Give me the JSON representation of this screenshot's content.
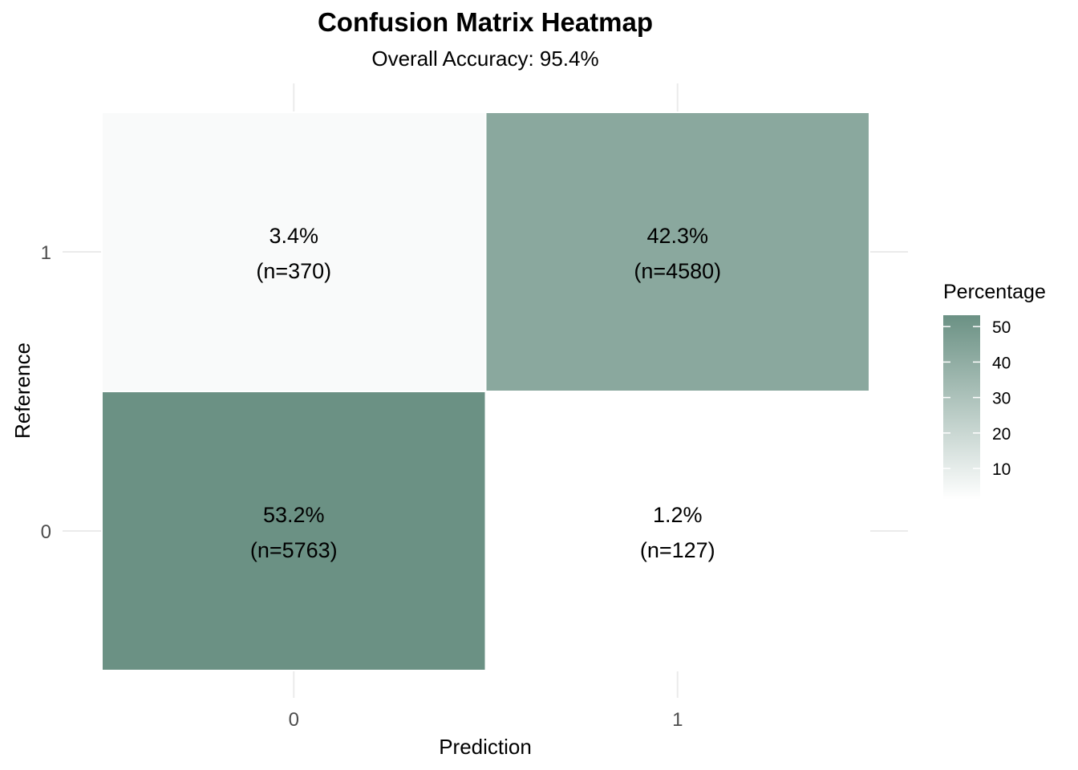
{
  "chart_data": {
    "type": "heatmap",
    "title": "Confusion Matrix Heatmap",
    "subtitle": "Overall Accuracy: 95.4%",
    "xlabel": "Prediction",
    "ylabel": "Reference",
    "x_categories": [
      "0",
      "1"
    ],
    "y_categories": [
      "0",
      "1"
    ],
    "cells": [
      {
        "prediction": "0",
        "reference": "1",
        "percentage": 3.4,
        "n": 370,
        "label_pct": "3.4%",
        "label_n": "(n=370)"
      },
      {
        "prediction": "1",
        "reference": "1",
        "percentage": 42.3,
        "n": 4580,
        "label_pct": "42.3%",
        "label_n": "(n=4580)"
      },
      {
        "prediction": "0",
        "reference": "0",
        "percentage": 53.2,
        "n": 5763,
        "label_pct": "53.2%",
        "label_n": "(n=5763)"
      },
      {
        "prediction": "1",
        "reference": "0",
        "percentage": 1.2,
        "n": 127,
        "label_pct": "1.2%",
        "label_n": "(n=127)"
      }
    ],
    "legend": {
      "title": "Percentage",
      "ticks": [
        10,
        20,
        30,
        40,
        50
      ],
      "range": [
        1.2,
        53.2
      ],
      "low_color": "#ffffff",
      "high_color": "#6b9184",
      "placement": "right"
    },
    "grid": true
  }
}
